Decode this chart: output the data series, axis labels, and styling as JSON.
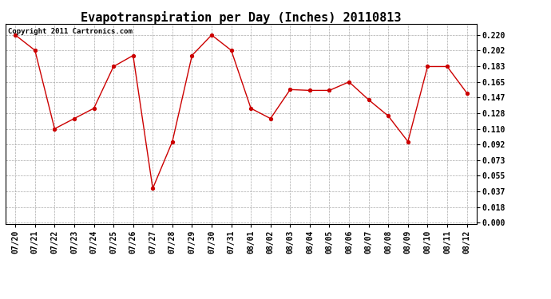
{
  "title": "Evapotranspiration per Day (Inches) 20110813",
  "copyright": "Copyright 2011 Cartronics.com",
  "x_labels": [
    "07/20",
    "07/21",
    "07/22",
    "07/23",
    "07/24",
    "07/25",
    "07/26",
    "07/27",
    "07/28",
    "07/29",
    "07/30",
    "07/31",
    "08/01",
    "08/02",
    "08/03",
    "08/04",
    "08/05",
    "08/06",
    "08/07",
    "08/08",
    "08/09",
    "08/10",
    "08/11",
    "08/12"
  ],
  "y_values": [
    0.22,
    0.202,
    0.11,
    0.122,
    0.134,
    0.183,
    0.196,
    0.04,
    0.095,
    0.196,
    0.22,
    0.202,
    0.134,
    0.122,
    0.156,
    0.155,
    0.155,
    0.165,
    0.144,
    0.125,
    0.095,
    0.183,
    0.183,
    0.152
  ],
  "line_color": "#cc0000",
  "marker": "o",
  "marker_color": "#cc0000",
  "marker_size": 3,
  "background_color": "#ffffff",
  "plot_bg_color": "#ffffff",
  "grid_color": "#aaaaaa",
  "grid_style": "--",
  "yticks": [
    0.0,
    0.018,
    0.037,
    0.055,
    0.073,
    0.092,
    0.11,
    0.128,
    0.147,
    0.165,
    0.183,
    0.202,
    0.22
  ],
  "ylim": [
    -0.002,
    0.233
  ],
  "title_fontsize": 11,
  "tick_fontsize": 7,
  "copyright_fontsize": 6.5
}
